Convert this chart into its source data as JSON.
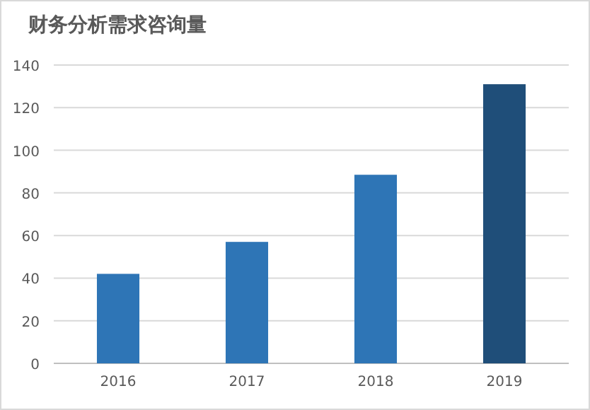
{
  "chart_data": {
    "type": "bar",
    "title": "财务分析需求咨询量",
    "categories": [
      "2016",
      "2017",
      "2018",
      "2019"
    ],
    "values": [
      42,
      57,
      88.5,
      131
    ],
    "colors": [
      "#2e75b6",
      "#2e75b6",
      "#2e75b6",
      "#1f4e79"
    ],
    "ylim": [
      0,
      140
    ],
    "yticks": [
      0,
      20,
      40,
      60,
      80,
      100,
      120,
      140
    ],
    "grid": "y"
  }
}
